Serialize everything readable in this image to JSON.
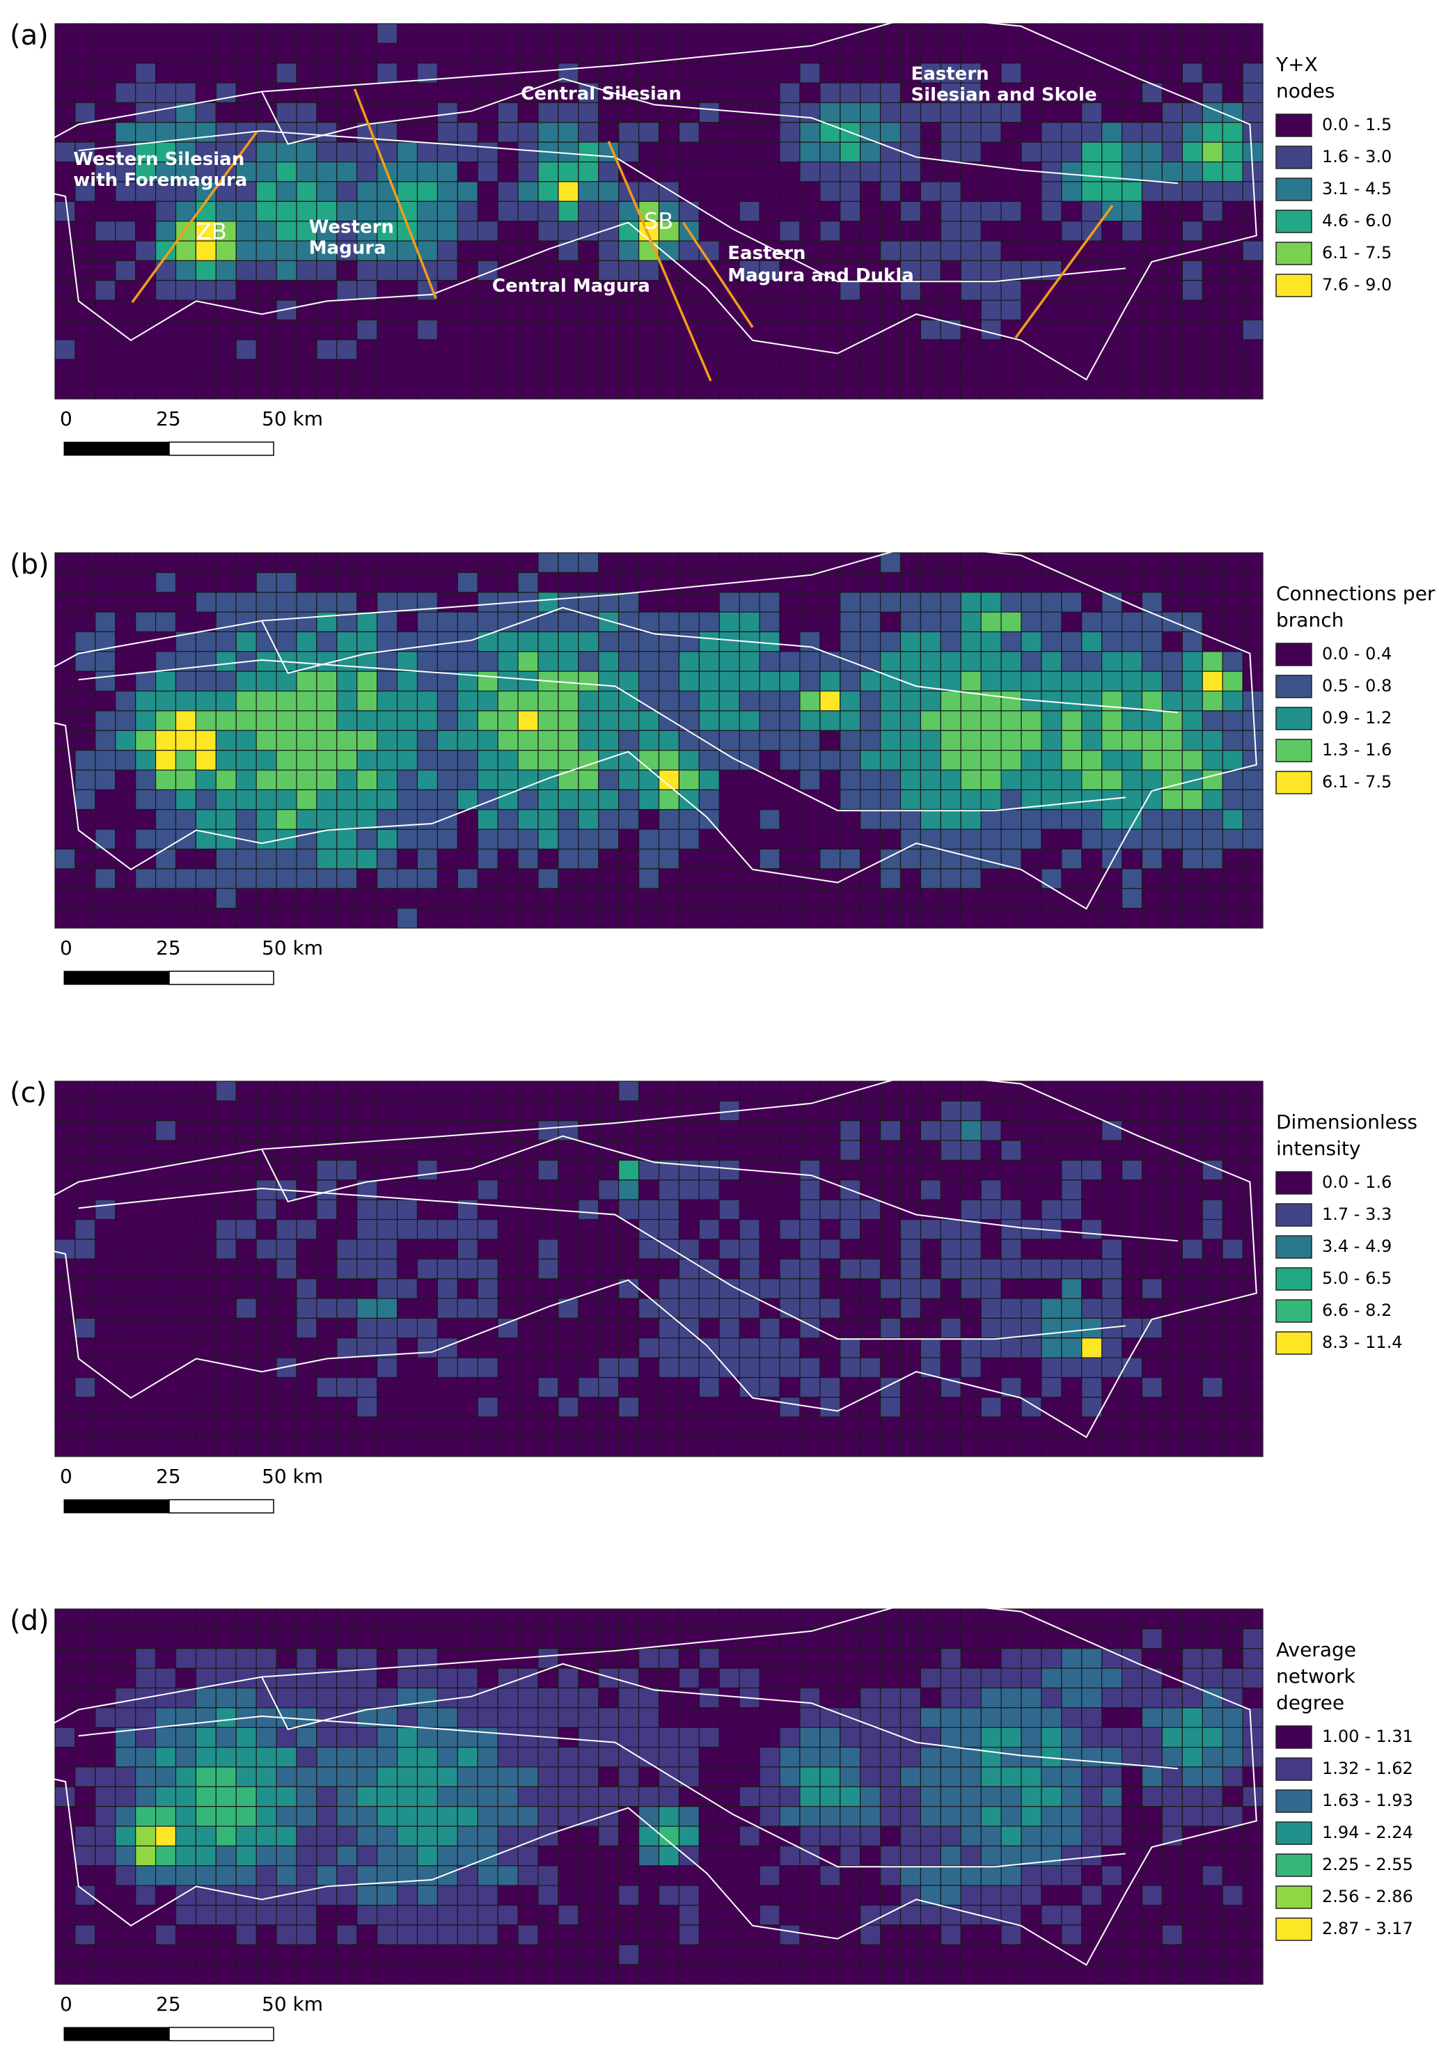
{
  "panels": [
    {
      "label": "(a)",
      "legend_title": [
        "Y+X",
        "nodes"
      ],
      "legend": [
        {
          "label": "0.0 - 1.5",
          "color": "#440154"
        },
        {
          "label": "1.6 - 3.0",
          "color": "#414487"
        },
        {
          "label": "3.1 - 4.5",
          "color": "#2a788e"
        },
        {
          "label": "4.6 - 6.0",
          "color": "#22a884"
        },
        {
          "label": "6.1 - 7.5",
          "color": "#7ad151"
        },
        {
          "label": "7.6 - 9.0",
          "color": "#fde725"
        }
      ],
      "annotations": [
        "Western Silesian",
        "with Foremagura",
        "ZB",
        "Western",
        "Magura",
        "Central Silesian",
        "Central Magura",
        "SB",
        "Eastern",
        "Magura and Dukla",
        "Eastern",
        "Silesian and Skole"
      ],
      "scale_labels": [
        "0",
        "25",
        "50 km"
      ]
    },
    {
      "label": "(b)",
      "legend_title": [
        "Connections per",
        "branch"
      ],
      "legend": [
        {
          "label": "0.0 - 0.4",
          "color": "#440154"
        },
        {
          "label": "0.5 - 0.8",
          "color": "#3b528b"
        },
        {
          "label": "0.9 - 1.2",
          "color": "#21918c"
        },
        {
          "label": "1.3 - 1.6",
          "color": "#5ec962"
        },
        {
          "label": "6.1 - 7.5",
          "color": "#fde725"
        }
      ],
      "scale_labels": [
        "0",
        "25",
        "50 km"
      ]
    },
    {
      "label": "(c)",
      "legend_title": [
        "Dimensionless",
        "intensity"
      ],
      "legend": [
        {
          "label": "0.0 - 1.6",
          "color": "#440154"
        },
        {
          "label": "1.7 - 3.3",
          "color": "#414487"
        },
        {
          "label": "3.4 - 4.9",
          "color": "#2a788e"
        },
        {
          "label": "5.0 - 6.5",
          "color": "#22a884"
        },
        {
          "label": "6.6 - 8.2",
          "color": "#35b779"
        },
        {
          "label": "8.3 - 11.4",
          "color": "#fde725"
        }
      ],
      "scale_labels": [
        "0",
        "25",
        "50 km"
      ]
    },
    {
      "label": "(d)",
      "legend_title": [
        "Average",
        "network",
        "degree"
      ],
      "legend": [
        {
          "label": "1.00 - 1.31",
          "color": "#440154"
        },
        {
          "label": "1.32 - 1.62",
          "color": "#443983"
        },
        {
          "label": "1.63 - 1.93",
          "color": "#31688e"
        },
        {
          "label": "1.94 - 2.24",
          "color": "#21918c"
        },
        {
          "label": "2.25 - 2.55",
          "color": "#35b779"
        },
        {
          "label": "2.56 - 2.86",
          "color": "#90d743"
        },
        {
          "label": "2.87 - 3.17",
          "color": "#fde725"
        }
      ],
      "scale_labels": [
        "0",
        "25",
        "50 km"
      ]
    }
  ]
}
